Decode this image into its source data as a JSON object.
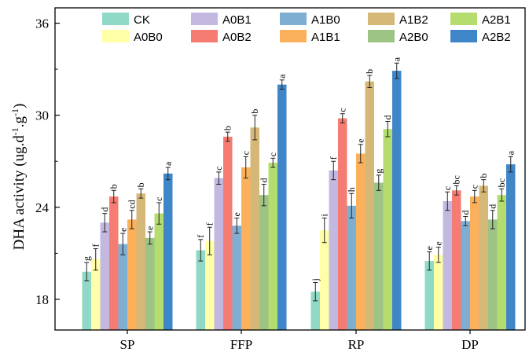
{
  "chart_data": {
    "type": "bar",
    "title": "",
    "xlabel": "",
    "ylabel": "DHA activity (ug.d",
    "ylabel_sup1": "-1",
    "ylabel_mid": ".g",
    "ylabel_sup2": "-1",
    "ylabel_end": ")",
    "ylim": [
      16,
      37
    ],
    "yticks": [
      18,
      24,
      30,
      36
    ],
    "categories": [
      "SP",
      "FFP",
      "RP",
      "DP"
    ],
    "legend_placement": "top",
    "series": [
      {
        "name": "CK",
        "color": "#8fd9c6",
        "values": [
          19.8,
          21.2,
          18.5,
          20.5
        ],
        "errors": [
          0.6,
          0.7,
          0.6,
          0.6
        ],
        "labels": [
          "g",
          "f",
          "j",
          "e"
        ]
      },
      {
        "name": "A0B0",
        "color": "#ffffa8",
        "values": [
          20.6,
          21.8,
          22.5,
          20.9
        ],
        "errors": [
          0.7,
          0.9,
          0.8,
          0.5
        ],
        "labels": [
          "f",
          "f",
          "i",
          "e"
        ]
      },
      {
        "name": "A0B1",
        "color": "#c3b8e0",
        "values": [
          23.0,
          25.9,
          26.4,
          24.4
        ],
        "errors": [
          0.6,
          0.4,
          0.6,
          0.6
        ],
        "labels": [
          "d",
          "c",
          "f",
          "c"
        ]
      },
      {
        "name": "A0B2",
        "color": "#f47c72",
        "values": [
          24.7,
          28.6,
          29.8,
          25.1
        ],
        "errors": [
          0.4,
          0.3,
          0.3,
          0.3
        ],
        "labels": [
          "b",
          "b",
          "c",
          "bc"
        ]
      },
      {
        "name": "A1B0",
        "color": "#7faed3",
        "values": [
          21.6,
          22.8,
          24.1,
          23.1
        ],
        "errors": [
          0.7,
          0.5,
          0.8,
          0.3
        ],
        "labels": [
          "e",
          "e",
          "h",
          "d"
        ]
      },
      {
        "name": "A1B1",
        "color": "#fbb15c",
        "values": [
          23.2,
          26.6,
          27.5,
          24.7
        ],
        "errors": [
          0.6,
          0.7,
          0.6,
          0.4
        ],
        "labels": [
          "cd",
          "c",
          "e",
          "c"
        ]
      },
      {
        "name": "A1B2",
        "color": "#d5b878",
        "values": [
          24.9,
          29.2,
          32.2,
          25.4
        ],
        "errors": [
          0.3,
          0.8,
          0.4,
          0.4
        ],
        "labels": [
          "b",
          "b",
          "b",
          "b"
        ]
      },
      {
        "name": "A2B0",
        "color": "#9dc485",
        "values": [
          22.0,
          24.8,
          25.6,
          23.2
        ],
        "errors": [
          0.4,
          0.7,
          0.5,
          0.6
        ],
        "labels": [
          "e",
          "d",
          "g",
          "d"
        ]
      },
      {
        "name": "A2B1",
        "color": "#b4dc6e",
        "values": [
          23.6,
          26.9,
          29.1,
          24.8
        ],
        "errors": [
          0.7,
          0.3,
          0.5,
          0.4
        ],
        "labels": [
          "c",
          "c",
          "d",
          "bc"
        ]
      },
      {
        "name": "A2B2",
        "color": "#3f86c9",
        "values": [
          26.2,
          32.0,
          32.9,
          26.8
        ],
        "errors": [
          0.4,
          0.3,
          0.5,
          0.5
        ],
        "labels": [
          "a",
          "a",
          "a",
          "a"
        ]
      }
    ]
  }
}
